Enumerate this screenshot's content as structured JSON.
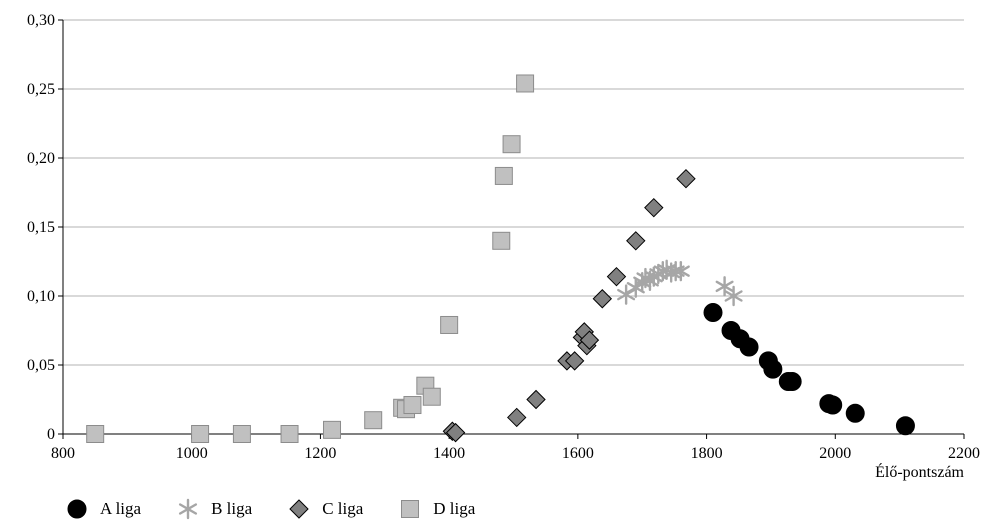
{
  "chart_data": {
    "type": "scatter",
    "xlabel": "Élő-pontszám",
    "ylabel": "",
    "xlim": [
      800,
      2200
    ],
    "ylim": [
      0,
      0.3
    ],
    "x_ticks": [
      "800",
      "1000",
      "1200",
      "1400",
      "1600",
      "1800",
      "2000",
      "2200"
    ],
    "y_ticks": [
      "0",
      "0,05",
      "0,10",
      "0,15",
      "0,20",
      "0,25",
      "0,30"
    ],
    "grid": "horizontal",
    "legend_position": "bottom",
    "series": [
      {
        "name": "A liga",
        "marker": "circle",
        "color": "#000000",
        "points": [
          [
            1810,
            0.088
          ],
          [
            1838,
            0.075
          ],
          [
            1852,
            0.069
          ],
          [
            1866,
            0.063
          ],
          [
            1896,
            0.053
          ],
          [
            1903,
            0.047
          ],
          [
            1927,
            0.038
          ],
          [
            1933,
            0.038
          ],
          [
            1990,
            0.022
          ],
          [
            1996,
            0.021
          ],
          [
            2031,
            0.015
          ],
          [
            2109,
            0.006
          ]
        ]
      },
      {
        "name": "B liga",
        "marker": "asterisk",
        "color": "#a6a6a6",
        "points": [
          [
            1675,
            0.101
          ],
          [
            1690,
            0.106
          ],
          [
            1700,
            0.11
          ],
          [
            1705,
            0.113
          ],
          [
            1712,
            0.111
          ],
          [
            1718,
            0.114
          ],
          [
            1725,
            0.116
          ],
          [
            1732,
            0.118
          ],
          [
            1738,
            0.119
          ],
          [
            1745,
            0.117
          ],
          [
            1752,
            0.118
          ],
          [
            1760,
            0.118
          ],
          [
            1828,
            0.107
          ],
          [
            1842,
            0.1
          ]
        ]
      },
      {
        "name": "C liga",
        "marker": "diamond",
        "color": "#808080",
        "points": [
          [
            1405,
            0.002
          ],
          [
            1410,
            0.001
          ],
          [
            1505,
            0.012
          ],
          [
            1535,
            0.025
          ],
          [
            1583,
            0.053
          ],
          [
            1595,
            0.053
          ],
          [
            1607,
            0.07
          ],
          [
            1610,
            0.074
          ],
          [
            1614,
            0.064
          ],
          [
            1618,
            0.068
          ],
          [
            1638,
            0.098
          ],
          [
            1660,
            0.114
          ],
          [
            1690,
            0.14
          ],
          [
            1718,
            0.164
          ],
          [
            1768,
            0.185
          ]
        ]
      },
      {
        "name": "D liga",
        "marker": "square",
        "color": "#c0c0c0",
        "points": [
          [
            850,
            0.0
          ],
          [
            1013,
            0.0
          ],
          [
            1078,
            0.0
          ],
          [
            1152,
            0.0
          ],
          [
            1218,
            0.003
          ],
          [
            1282,
            0.01
          ],
          [
            1327,
            0.019
          ],
          [
            1333,
            0.018
          ],
          [
            1343,
            0.021
          ],
          [
            1363,
            0.035
          ],
          [
            1373,
            0.027
          ],
          [
            1400,
            0.079
          ],
          [
            1481,
            0.14
          ],
          [
            1485,
            0.187
          ],
          [
            1497,
            0.21
          ],
          [
            1518,
            0.254
          ]
        ]
      }
    ]
  }
}
